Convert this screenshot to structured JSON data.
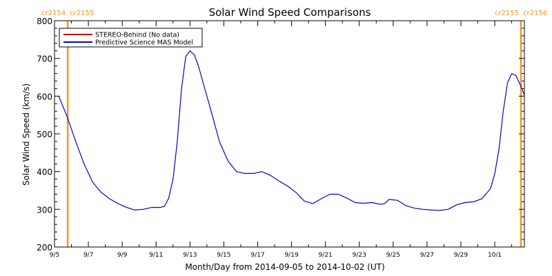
{
  "chart_data": {
    "type": "line",
    "title": "Solar Wind Speed Comparisons",
    "xlabel": "Month/Day from 2014-09-05 to 2014-10-02 (UT)",
    "ylabel": "Solar Wind Speed (km/s)",
    "xlim": [
      "2014-09-05T00:00",
      "2014-10-02T18:00"
    ],
    "ylim": [
      200,
      800
    ],
    "x_ticks": [
      {
        "date": "2014-09-05",
        "label": "9/5"
      },
      {
        "date": "2014-09-07",
        "label": "9/7"
      },
      {
        "date": "2014-09-09",
        "label": "9/9"
      },
      {
        "date": "2014-09-11",
        "label": "9/11"
      },
      {
        "date": "2014-09-13",
        "label": "9/13"
      },
      {
        "date": "2014-09-15",
        "label": "9/15"
      },
      {
        "date": "2014-09-17",
        "label": "9/17"
      },
      {
        "date": "2014-09-19",
        "label": "9/19"
      },
      {
        "date": "2014-09-21",
        "label": "9/21"
      },
      {
        "date": "2014-09-23",
        "label": "9/23"
      },
      {
        "date": "2014-09-25",
        "label": "9/25"
      },
      {
        "date": "2014-09-27",
        "label": "9/27"
      },
      {
        "date": "2014-09-29",
        "label": "9/29"
      },
      {
        "date": "2014-10-01",
        "label": "10/1"
      }
    ],
    "y_ticks": [
      {
        "value": 200,
        "label": "200"
      },
      {
        "value": 300,
        "label": "300"
      },
      {
        "value": 400,
        "label": "400"
      },
      {
        "value": 500,
        "label": "500"
      },
      {
        "value": 600,
        "label": "600"
      },
      {
        "value": 700,
        "label": "700"
      },
      {
        "value": 800,
        "label": "800"
      }
    ],
    "legend": {
      "placement": "top-left",
      "entries": [
        {
          "label": "STEREO-Behind (No data)",
          "color": "#c00000"
        },
        {
          "label": "Predictive Science MAS Model",
          "color": "#0000cc"
        }
      ]
    },
    "rotation_markers": [
      {
        "date": "2014-09-05T06:00",
        "labels": [
          {
            "text": "cr2154",
            "side": "left"
          },
          {
            "text": "cr2155",
            "side": "right"
          }
        ]
      },
      {
        "date": "2014-10-02T18:00",
        "labels": [
          {
            "text": "cr2155",
            "side": "left"
          },
          {
            "text": "cr2156",
            "side": "right"
          }
        ]
      }
    ],
    "marker_color": "#f7941d",
    "series": [
      {
        "name": "Predictive Science MAS Model",
        "color": "#0000cc",
        "points": [
          [
            "2014-09-05T06:00",
            600
          ],
          [
            "2014-09-05T18:00",
            545
          ],
          [
            "2014-09-06T06:00",
            480
          ],
          [
            "2014-09-06T18:00",
            420
          ],
          [
            "2014-09-07T06:00",
            372
          ],
          [
            "2014-09-07T18:00",
            345
          ],
          [
            "2014-09-08T06:00",
            328
          ],
          [
            "2014-09-08T18:00",
            315
          ],
          [
            "2014-09-09T06:00",
            305
          ],
          [
            "2014-09-09T18:00",
            298
          ],
          [
            "2014-09-10T06:00",
            300
          ],
          [
            "2014-09-10T18:00",
            305
          ],
          [
            "2014-09-11T06:00",
            305
          ],
          [
            "2014-09-11T12:00",
            308
          ],
          [
            "2014-09-11T18:00",
            330
          ],
          [
            "2014-09-12T00:00",
            380
          ],
          [
            "2014-09-12T06:00",
            480
          ],
          [
            "2014-09-12T12:00",
            620
          ],
          [
            "2014-09-12T18:00",
            705
          ],
          [
            "2014-09-13T00:00",
            720
          ],
          [
            "2014-09-13T06:00",
            710
          ],
          [
            "2014-09-13T12:00",
            680
          ],
          [
            "2014-09-13T18:00",
            640
          ],
          [
            "2014-09-14T06:00",
            560
          ],
          [
            "2014-09-14T18:00",
            478
          ],
          [
            "2014-09-15T06:00",
            428
          ],
          [
            "2014-09-15T18:00",
            400
          ],
          [
            "2014-09-16T06:00",
            395
          ],
          [
            "2014-09-16T18:00",
            395
          ],
          [
            "2014-09-17T06:00",
            400
          ],
          [
            "2014-09-17T18:00",
            390
          ],
          [
            "2014-09-18T06:00",
            375
          ],
          [
            "2014-09-18T18:00",
            362
          ],
          [
            "2014-09-19T06:00",
            345
          ],
          [
            "2014-09-19T18:00",
            322
          ],
          [
            "2014-09-20T06:00",
            315
          ],
          [
            "2014-09-20T18:00",
            328
          ],
          [
            "2014-09-21T06:00",
            340
          ],
          [
            "2014-09-21T18:00",
            340
          ],
          [
            "2014-09-22T06:00",
            330
          ],
          [
            "2014-09-22T18:00",
            318
          ],
          [
            "2014-09-23T06:00",
            316
          ],
          [
            "2014-09-23T18:00",
            318
          ],
          [
            "2014-09-24T06:00",
            313
          ],
          [
            "2014-09-24T12:00",
            315
          ],
          [
            "2014-09-24T18:00",
            326
          ],
          [
            "2014-09-25T06:00",
            324
          ],
          [
            "2014-09-25T18:00",
            310
          ],
          [
            "2014-09-26T06:00",
            303
          ],
          [
            "2014-09-26T18:00",
            300
          ],
          [
            "2014-09-27T06:00",
            298
          ],
          [
            "2014-09-27T18:00",
            297
          ],
          [
            "2014-09-28T06:00",
            300
          ],
          [
            "2014-09-28T18:00",
            312
          ],
          [
            "2014-09-29T06:00",
            318
          ],
          [
            "2014-09-29T18:00",
            320
          ],
          [
            "2014-09-30T06:00",
            328
          ],
          [
            "2014-09-30T18:00",
            355
          ],
          [
            "2014-10-01T00:00",
            395
          ],
          [
            "2014-10-01T06:00",
            460
          ],
          [
            "2014-10-01T12:00",
            560
          ],
          [
            "2014-10-01T18:00",
            635
          ],
          [
            "2014-10-02T00:00",
            660
          ],
          [
            "2014-10-02T06:00",
            655
          ],
          [
            "2014-10-02T12:00",
            630
          ],
          [
            "2014-10-02T18:00",
            603
          ]
        ]
      }
    ]
  }
}
